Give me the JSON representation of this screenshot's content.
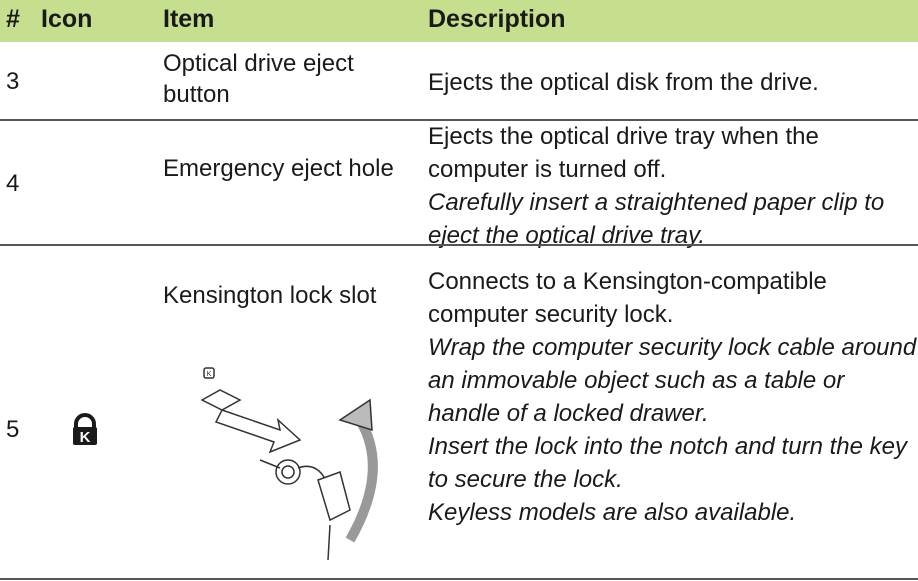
{
  "table": {
    "header": [
      "#",
      "Icon",
      "Item",
      "Description"
    ],
    "rows": [
      {
        "number": "3",
        "item": "Optical drive eject button",
        "description": "Ejects the optical disk from the drive.",
        "notes": []
      },
      {
        "number": "4",
        "item": "Emergency eject hole",
        "description": "Ejects the optical drive tray when the computer is turned off.",
        "notes": [
          "Carefully insert a straightened paper clip to eject the optical drive tray."
        ]
      },
      {
        "number": "5",
        "item": "Kensington lock slot",
        "description": "Connects to a Kensington-compatible computer security lock.",
        "notes": [
          "Wrap the computer security lock cable around an immovable object such as a table or handle of a locked drawer.",
          "Insert the lock into the notch and turn the key to secure the lock.",
          "Keyless models are also available."
        ]
      }
    ]
  }
}
